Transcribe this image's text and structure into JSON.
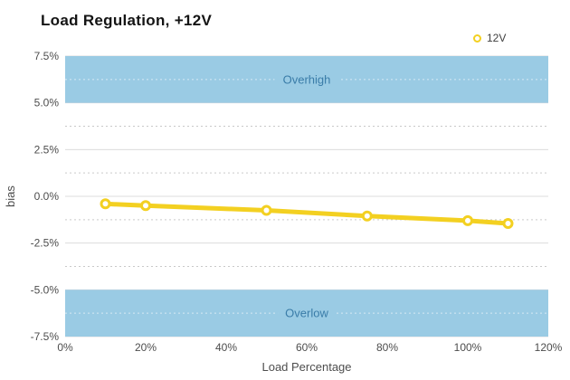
{
  "title": "Load Regulation, +12V",
  "legend": {
    "items": [
      {
        "label": "12V",
        "symbol": "hollow-circle",
        "color": "#F3D021"
      }
    ],
    "position": "top-right"
  },
  "colors": {
    "series_yellow": "#F3D021",
    "band_blue": "#9ACBE4",
    "band_label_blue": "#3A7CA8",
    "title_text": "#141414",
    "axis_text": "#4d4d4d",
    "major_grid": "#dcdcdc",
    "minor_grid": "#c9c9c9",
    "minor_grid_on_band": "rgba(255,255,255,0.6)",
    "marker_fill": "#ffffff",
    "background": "#ffffff"
  },
  "chart_data": {
    "type": "line",
    "title": "Load Regulation, +12V",
    "xlabel": "Load Percentage",
    "ylabel": "bias",
    "xlim": [
      0,
      120
    ],
    "ylim": [
      -7.5,
      7.5
    ],
    "grid": true,
    "legend_position": "top-right",
    "x_ticks": [
      {
        "v": 0,
        "label": "0%"
      },
      {
        "v": 20,
        "label": "20%"
      },
      {
        "v": 40,
        "label": "40%"
      },
      {
        "v": 60,
        "label": "60%"
      },
      {
        "v": 80,
        "label": "80%"
      },
      {
        "v": 100,
        "label": "100%"
      },
      {
        "v": 120,
        "label": "120%"
      }
    ],
    "y_ticks": [
      {
        "v": 7.5,
        "label": "7.5%"
      },
      {
        "v": 5.0,
        "label": "5.0%"
      },
      {
        "v": 2.5,
        "label": "2.5%"
      },
      {
        "v": 0.0,
        "label": "0.0%"
      },
      {
        "v": -2.5,
        "label": "-2.5%"
      },
      {
        "v": -5.0,
        "label": "-5.0%"
      },
      {
        "v": -7.5,
        "label": "-7.5%"
      }
    ],
    "y_minor_ticks": [
      6.25,
      3.75,
      1.25,
      -1.25,
      -3.75,
      -6.25
    ],
    "bands": [
      {
        "label": "Overhigh",
        "from": 5.0,
        "to": 7.5,
        "color": "#9ACBE4",
        "label_color": "#3A7CA8"
      },
      {
        "label": "Overlow",
        "from": -7.5,
        "to": -5.0,
        "color": "#9ACBE4",
        "label_color": "#3A7CA8"
      }
    ],
    "series": [
      {
        "name": "12V",
        "color": "#F3D021",
        "marker": "hollow-circle",
        "x": [
          10,
          20,
          50,
          75,
          100,
          110
        ],
        "y": [
          -0.4,
          -0.5,
          -0.75,
          -1.05,
          -1.3,
          -1.45
        ]
      }
    ]
  }
}
